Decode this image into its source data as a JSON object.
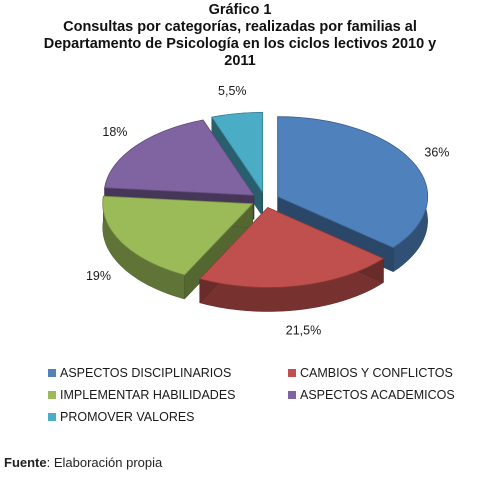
{
  "header": {
    "line1": "Gráfico 1",
    "line2": "Consultas por categorías, realizadas por familias al",
    "line3": "Departamento de Psicología en los ciclos lectivos  2010 y",
    "line4": "2011"
  },
  "chart_data": {
    "type": "pie",
    "style": "3d-exploded",
    "title": "Gráfico 1 Consultas por categorías, realizadas por familias al Departamento de Psicología en los ciclos lectivos  2010 y 2011",
    "categories": [
      "ASPECTOS DISCIPLINARIOS",
      "CAMBIOS Y CONFLICTOS",
      "IMPLEMENTAR HABILIDADES",
      "ASPECTOS ACADEMICOS",
      "PROMOVER VALORES"
    ],
    "values": [
      36,
      21.5,
      19,
      18,
      5.5
    ],
    "data_labels": [
      "36%",
      "21,5%",
      "19%",
      "18%",
      "5,5%"
    ],
    "colors": [
      "#4f81bd",
      "#c0504d",
      "#9bbb59",
      "#8064a2",
      "#4bacc6"
    ],
    "legend_position": "bottom"
  },
  "legend": {
    "items": [
      "ASPECTOS DISCIPLINARIOS",
      "CAMBIOS Y CONFLICTOS",
      "IMPLEMENTAR HABILIDADES",
      "ASPECTOS ACADEMICOS",
      "PROMOVER VALORES"
    ]
  },
  "source": {
    "label": "Fuente",
    "text": ": Elaboración propia"
  }
}
